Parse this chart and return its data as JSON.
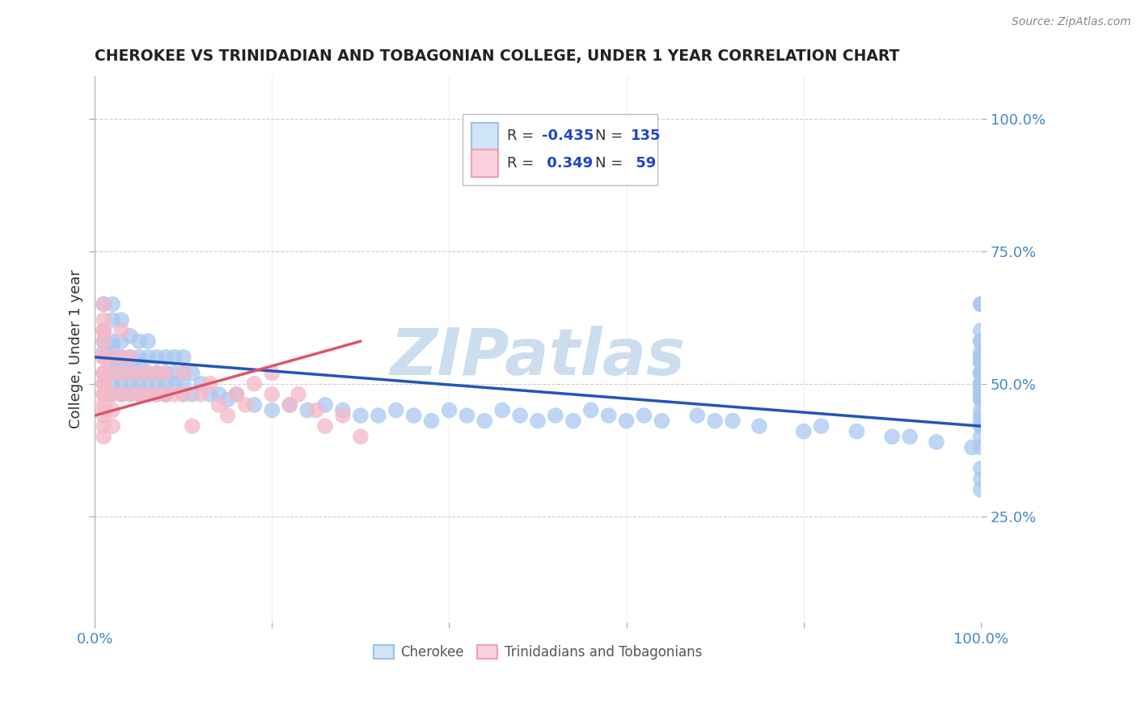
{
  "title": "CHEROKEE VS TRINIDADIAN AND TOBAGONIAN COLLEGE, UNDER 1 YEAR CORRELATION CHART",
  "source": "Source: ZipAtlas.com",
  "ylabel": "College, Under 1 year",
  "legend_r1_label": "R = -0.435",
  "legend_n1_label": "N = 135",
  "legend_r2_label": "R =  0.349",
  "legend_n2_label": "N =  59",
  "blue_scatter_color": "#a8c8f0",
  "blue_scatter_edge": "#8ab4e8",
  "pink_scatter_color": "#f5b8c8",
  "pink_scatter_edge": "#e89ab0",
  "blue_line_color": "#2255bb",
  "pink_line_color": "#dd5566",
  "legend_r_color": "#2244cc",
  "legend_box_fill_blue": "#d0e4f8",
  "legend_box_fill_pink": "#fad0dc",
  "legend_box_edge_blue": "#a0c0e8",
  "legend_box_edge_pink": "#f0a0b8",
  "watermark_color": "#ccddee",
  "grid_color": "#cccccc",
  "tick_color": "#4488cc",
  "background_color": "#ffffff",
  "title_color": "#222222",
  "ylabel_color": "#333333",
  "source_color": "#888888",
  "blue_x": [
    1,
    1,
    1,
    1,
    1,
    2,
    2,
    2,
    2,
    2,
    2,
    2,
    2,
    2,
    3,
    3,
    3,
    3,
    3,
    3,
    3,
    4,
    4,
    4,
    4,
    4,
    4,
    5,
    5,
    5,
    5,
    5,
    5,
    6,
    6,
    6,
    6,
    6,
    7,
    7,
    7,
    7,
    8,
    8,
    8,
    8,
    8,
    9,
    9,
    9,
    10,
    10,
    10,
    10,
    11,
    11,
    12,
    13,
    14,
    15,
    16,
    18,
    20,
    22,
    24,
    26,
    28,
    30,
    32,
    34,
    36,
    38,
    40,
    42,
    44,
    46,
    48,
    50,
    52,
    54,
    56,
    58,
    60,
    62,
    64,
    68,
    70,
    72,
    75,
    80,
    82,
    86,
    90,
    92,
    95,
    99,
    100,
    100,
    100,
    100,
    100,
    100,
    100,
    100,
    100,
    100,
    100,
    100,
    100,
    100,
    100,
    100,
    100,
    100,
    100,
    100,
    100,
    100,
    100,
    100,
    100,
    100,
    100,
    100,
    100,
    100,
    100,
    100,
    100,
    100,
    100,
    100,
    100,
    100,
    100
  ],
  "blue_y": [
    52,
    56,
    60,
    65,
    58,
    48,
    52,
    55,
    58,
    62,
    65,
    50,
    53,
    57,
    48,
    52,
    55,
    58,
    62,
    50,
    54,
    48,
    52,
    55,
    59,
    50,
    54,
    48,
    52,
    55,
    58,
    50,
    54,
    48,
    52,
    55,
    58,
    50,
    48,
    52,
    55,
    50,
    48,
    52,
    55,
    50,
    48,
    52,
    55,
    50,
    48,
    52,
    55,
    50,
    48,
    52,
    50,
    48,
    48,
    47,
    48,
    46,
    45,
    46,
    45,
    46,
    45,
    44,
    44,
    45,
    44,
    43,
    45,
    44,
    43,
    45,
    44,
    43,
    44,
    43,
    45,
    44,
    43,
    44,
    43,
    44,
    43,
    43,
    42,
    41,
    42,
    41,
    40,
    40,
    39,
    38,
    52,
    55,
    55,
    48,
    50,
    52,
    58,
    58,
    50,
    54,
    55,
    52,
    56,
    48,
    50,
    52,
    55,
    65,
    65,
    60,
    50,
    52,
    54,
    45,
    47,
    48,
    49,
    47,
    48,
    49,
    42,
    43,
    44,
    38,
    40,
    42,
    30,
    32,
    34
  ],
  "pink_x": [
    1,
    1,
    1,
    1,
    1,
    1,
    1,
    1,
    1,
    1,
    1,
    1,
    1,
    1,
    1,
    1,
    1,
    1,
    1,
    1,
    2,
    2,
    2,
    2,
    2,
    3,
    3,
    3,
    3,
    4,
    4,
    4,
    5,
    5,
    6,
    6,
    7,
    7,
    8,
    8,
    9,
    10,
    10,
    11,
    12,
    13,
    14,
    15,
    16,
    17,
    18,
    20,
    20,
    22,
    23,
    25,
    26,
    28,
    30
  ],
  "pink_y": [
    50,
    52,
    55,
    58,
    60,
    62,
    65,
    48,
    50,
    52,
    55,
    42,
    44,
    46,
    48,
    40,
    45,
    50,
    55,
    60,
    45,
    48,
    52,
    55,
    42,
    48,
    52,
    55,
    60,
    48,
    52,
    55,
    48,
    52,
    48,
    52,
    48,
    52,
    48,
    52,
    48,
    48,
    52,
    42,
    48,
    50,
    46,
    44,
    48,
    46,
    50,
    48,
    52,
    46,
    48,
    45,
    42,
    44,
    40
  ],
  "blue_trend_x0": 0,
  "blue_trend_x1": 100,
  "blue_trend_y0": 55,
  "blue_trend_y1": 42,
  "pink_trend_x0": 0,
  "pink_trend_x1": 30,
  "pink_trend_y0": 44,
  "pink_trend_y1": 58,
  "xmin": 0,
  "xmax": 100,
  "ymin": 5,
  "ymax": 108,
  "yticks": [
    25,
    50,
    75,
    100
  ],
  "xticks": [
    0,
    20,
    40,
    60,
    80,
    100
  ]
}
